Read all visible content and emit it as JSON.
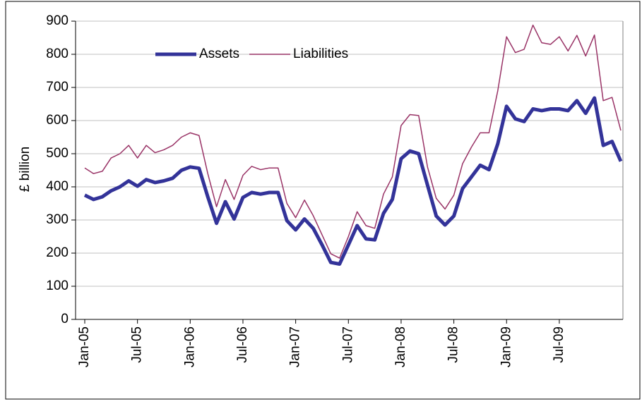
{
  "chart_data": {
    "type": "line",
    "y_label": "£ billion",
    "categories": [
      "Jan-05",
      null,
      null,
      null,
      null,
      null,
      "Jul-05",
      null,
      null,
      null,
      null,
      null,
      "Jan-06",
      null,
      null,
      null,
      null,
      null,
      "Jul-06",
      null,
      null,
      null,
      null,
      null,
      "Jan-07",
      null,
      null,
      null,
      null,
      null,
      "Jul-07",
      null,
      null,
      null,
      null,
      null,
      "Jan-08",
      null,
      null,
      null,
      null,
      null,
      "Jul-08",
      null,
      null,
      null,
      null,
      null,
      "Jan-09",
      null,
      null,
      null,
      null,
      null,
      "Jul-09",
      null,
      null,
      null,
      null,
      null,
      null,
      null
    ],
    "series": [
      {
        "name": "Assets",
        "color": "#333399",
        "width": 5,
        "values": [
          375,
          362,
          370,
          388,
          400,
          418,
          402,
          422,
          413,
          418,
          426,
          450,
          460,
          456,
          370,
          290,
          355,
          303,
          368,
          383,
          378,
          383,
          383,
          298,
          270,
          303,
          275,
          225,
          172,
          167,
          225,
          283,
          243,
          240,
          320,
          362,
          485,
          508,
          500,
          405,
          312,
          285,
          312,
          395,
          430,
          465,
          452,
          530,
          643,
          605,
          597,
          635,
          630,
          635,
          635,
          630,
          660,
          622,
          668,
          525,
          537,
          477
        ]
      },
      {
        "name": "Liabilities",
        "color": "#993366",
        "width": 1.5,
        "values": [
          457,
          440,
          447,
          487,
          500,
          525,
          487,
          525,
          503,
          512,
          525,
          550,
          563,
          555,
          440,
          340,
          422,
          362,
          435,
          462,
          452,
          457,
          457,
          350,
          307,
          360,
          313,
          255,
          198,
          185,
          250,
          325,
          283,
          275,
          378,
          430,
          585,
          618,
          615,
          460,
          365,
          333,
          375,
          470,
          520,
          563,
          563,
          690,
          853,
          805,
          815,
          888,
          835,
          830,
          853,
          810,
          857,
          795,
          858,
          660,
          670,
          570
        ]
      }
    ],
    "ylim": [
      0,
      900
    ],
    "yticks": [
      0,
      100,
      200,
      300,
      400,
      500,
      600,
      700,
      800,
      900
    ],
    "grid": true,
    "legend": "top"
  }
}
